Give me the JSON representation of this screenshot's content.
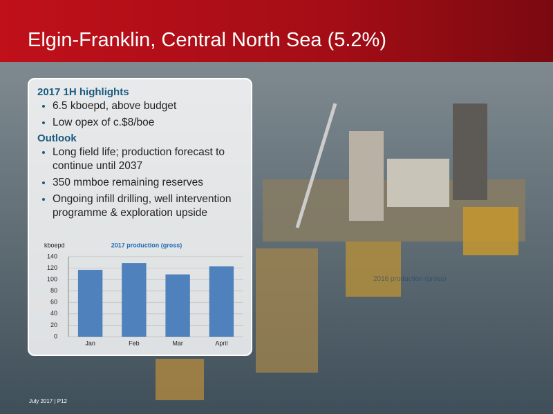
{
  "header": {
    "title": "Elgin-Franklin, Central North Sea (5.2%)"
  },
  "panel": {
    "highlights_heading": "2017 1H highlights",
    "highlights": [
      "6.5 kboepd, above budget",
      "Low opex of c.$8/boe"
    ],
    "outlook_heading": "Outlook",
    "outlook": [
      "Long field life; production forecast to continue until 2037",
      "350 mmboe remaining reserves",
      "Ongoing infill drilling, well intervention programme & exploration upside"
    ]
  },
  "chart_data": {
    "type": "bar",
    "title": "2017 production (gross)",
    "y_label": "kboepd",
    "categories": [
      "Jan",
      "Feb",
      "Mar",
      "April"
    ],
    "values": [
      117,
      129,
      109,
      123
    ],
    "color": "#4f81bd",
    "ylim": [
      0,
      140
    ],
    "yticks": [
      0,
      20,
      40,
      60,
      80,
      100,
      120,
      140
    ],
    "grid": true
  },
  "ghost_label": "2016 production (gross)",
  "footer": {
    "text": "July 2017 | P12"
  }
}
